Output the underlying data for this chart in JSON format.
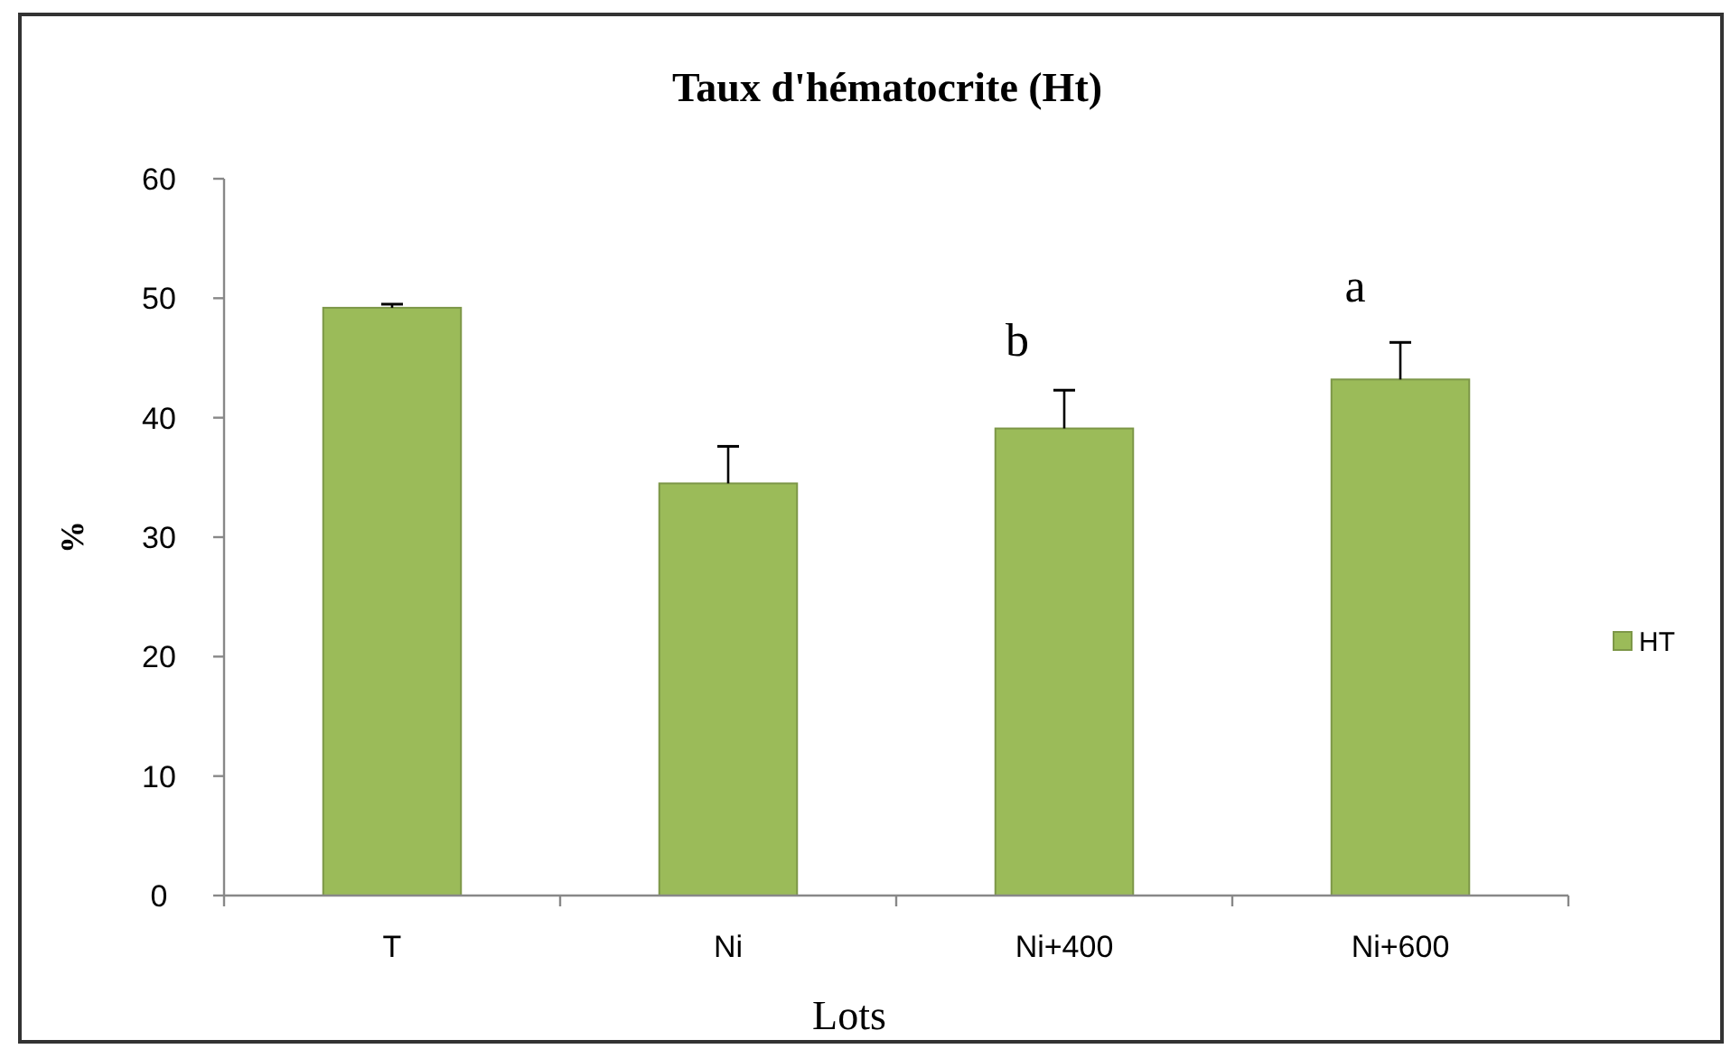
{
  "chart_data": {
    "type": "bar",
    "title": "Taux d'hématocrite (Ht)",
    "xlabel": "Lots",
    "ylabel": "%",
    "categories": [
      "T",
      "Ni",
      "Ni+400",
      "Ni+600"
    ],
    "series": [
      {
        "name": "HT",
        "color": "#9bbb59",
        "values": [
          49.2,
          34.5,
          39.1,
          43.2
        ],
        "errors": [
          [
            49.2,
            49.5
          ],
          [
            34.5,
            37.6
          ],
          [
            39.1,
            42.3
          ],
          [
            43.2,
            46.3
          ]
        ]
      }
    ],
    "ylim": [
      0,
      60
    ],
    "yticks": [
      0,
      10,
      20,
      30,
      40,
      50,
      60
    ],
    "grid": false,
    "legend": "right",
    "annotations": [
      "b",
      "a"
    ]
  }
}
